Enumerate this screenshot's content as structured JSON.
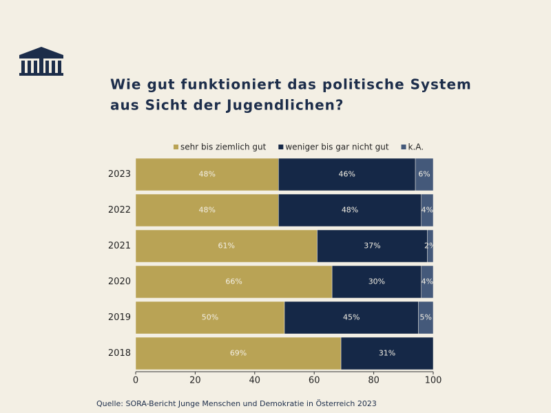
{
  "chart_data": {
    "type": "stacked-bar-horizontal",
    "title": [
      "Wie gut funktioniert das politische System",
      "aus Sicht der Jugendlichen?"
    ],
    "categories": [
      "2023",
      "2022",
      "2021",
      "2020",
      "2019",
      "2018"
    ],
    "series": [
      {
        "name": "sehr bis ziemlich gut",
        "color": "#b9a355",
        "values": [
          48,
          48,
          61,
          66,
          50,
          69
        ],
        "value_labels": [
          "48%",
          "48%",
          "61%",
          "66%",
          "50%",
          "69%"
        ]
      },
      {
        "name": "weniger bis gar nicht gut",
        "color": "#152847",
        "values": [
          46,
          48,
          37,
          30,
          45,
          31
        ],
        "value_labels": [
          "46%",
          "48%",
          "37%",
          "30%",
          "45%",
          "31%"
        ]
      },
      {
        "name": "k.A.",
        "color": "#44597a",
        "values": [
          6,
          4,
          2,
          4,
          5,
          null
        ],
        "value_labels": [
          "6%",
          "4%",
          "2%",
          "4%",
          "5%",
          null
        ]
      }
    ],
    "xlim": [
      0,
      100
    ],
    "xticks": [
      0,
      20,
      40,
      60,
      80,
      100
    ],
    "source": "Quelle: SORA-Bericht Junge Menschen und Demokratie in Österreich 2023"
  }
}
